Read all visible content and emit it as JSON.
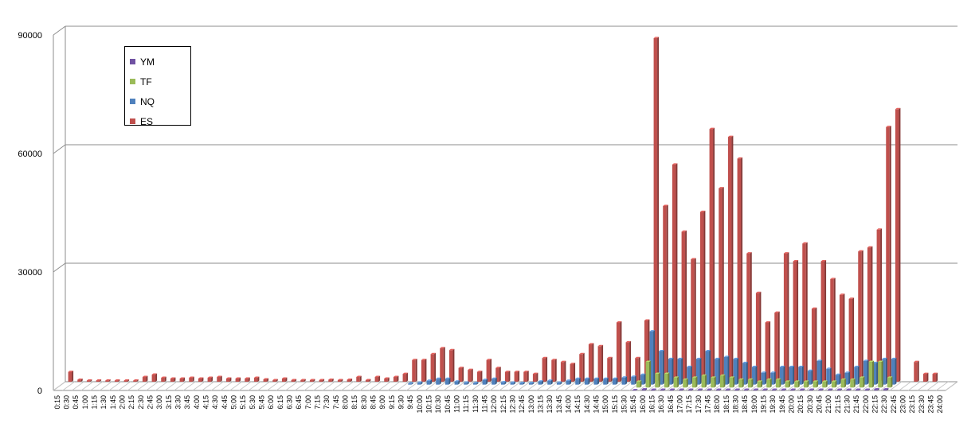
{
  "chart_data": {
    "type": "bar",
    "y_ticks": [
      "0",
      "30000",
      "60000",
      "90000"
    ],
    "ylim": [
      0,
      90000
    ],
    "grid": true,
    "legend_position": "top-left",
    "categories": [
      "0:15",
      "0:30",
      "0:45",
      "1:00",
      "1:15",
      "1:30",
      "1:45",
      "2:00",
      "2:15",
      "2:30",
      "2:45",
      "3:00",
      "3:15",
      "3:30",
      "3:45",
      "4:00",
      "4:15",
      "4:30",
      "4:45",
      "5:00",
      "5:15",
      "5:30",
      "5:45",
      "6:00",
      "6:15",
      "6:30",
      "6:45",
      "7:00",
      "7:15",
      "7:30",
      "7:45",
      "8:00",
      "8:15",
      "8:30",
      "8:45",
      "9:00",
      "9:15",
      "9:30",
      "9:45",
      "10:00",
      "10:15",
      "10:30",
      "10:45",
      "11:00",
      "11:15",
      "11:30",
      "11:45",
      "12:00",
      "12:15",
      "12:30",
      "12:45",
      "13:00",
      "13:15",
      "13:30",
      "13:45",
      "14:00",
      "14:15",
      "14:30",
      "14:45",
      "15:00",
      "15:15",
      "15:30",
      "15:45",
      "16:00",
      "16:15",
      "16:30",
      "16:45",
      "17:00",
      "17:15",
      "17:30",
      "17:45",
      "18:00",
      "18:15",
      "18:30",
      "18:45",
      "19:00",
      "19:15",
      "19:30",
      "19:45",
      "20:00",
      "20:15",
      "20:30",
      "20:45",
      "21:00",
      "21:15",
      "21:30",
      "21:45",
      "22:00",
      "22:15",
      "22:30",
      "22:45",
      "23:00",
      "23:15",
      "23:30",
      "23:45",
      "24:00"
    ],
    "series": [
      {
        "name": "YM",
        "color": "#7052a2",
        "values": [
          0,
          0,
          0,
          0,
          0,
          0,
          0,
          0,
          0,
          0,
          0,
          0,
          0,
          0,
          0,
          0,
          0,
          0,
          0,
          0,
          0,
          0,
          0,
          0,
          0,
          0,
          0,
          0,
          0,
          0,
          0,
          0,
          0,
          0,
          0,
          0,
          0,
          0,
          0,
          0,
          0,
          0,
          0,
          0,
          0,
          0,
          0,
          0,
          0,
          0,
          0,
          0,
          0,
          0,
          0,
          0,
          0,
          0,
          0,
          0,
          0,
          0,
          100,
          300,
          200,
          200,
          200,
          200,
          200,
          200,
          200,
          200,
          200,
          200,
          200,
          200,
          200,
          200,
          200,
          200,
          200,
          200,
          200,
          200,
          200,
          200,
          200,
          200,
          300,
          300,
          0,
          0,
          0,
          0,
          0,
          0
        ]
      },
      {
        "name": "TF",
        "color": "#9bbb59",
        "values": [
          0,
          0,
          0,
          0,
          0,
          0,
          0,
          0,
          0,
          0,
          0,
          0,
          0,
          0,
          0,
          0,
          0,
          0,
          0,
          0,
          0,
          0,
          0,
          0,
          0,
          0,
          0,
          0,
          0,
          0,
          0,
          0,
          0,
          0,
          0,
          0,
          0,
          0,
          0,
          0,
          0,
          0,
          0,
          0,
          0,
          0,
          0,
          0,
          0,
          0,
          0,
          0,
          0,
          0,
          0,
          0,
          0,
          0,
          0,
          0,
          0,
          0,
          1500,
          6500,
          3500,
          3500,
          2500,
          2000,
          2500,
          3000,
          2500,
          3000,
          2500,
          2000,
          2000,
          1500,
          2000,
          2000,
          1500,
          1500,
          1500,
          1500,
          1500,
          1500,
          2000,
          2000,
          2500,
          6500,
          6500,
          2500,
          0,
          0,
          0,
          0,
          0,
          0
        ]
      },
      {
        "name": "NQ",
        "color": "#4f81bd",
        "values": [
          0,
          0,
          0,
          0,
          0,
          0,
          0,
          0,
          0,
          0,
          0,
          0,
          0,
          0,
          0,
          0,
          0,
          0,
          0,
          0,
          0,
          0,
          0,
          0,
          0,
          0,
          0,
          0,
          0,
          0,
          0,
          0,
          0,
          0,
          0,
          0,
          0,
          300,
          500,
          1000,
          1500,
          1500,
          800,
          500,
          400,
          1200,
          1500,
          600,
          500,
          400,
          400,
          800,
          1000,
          500,
          1000,
          1500,
          1500,
          1500,
          1500,
          1500,
          1800,
          2000,
          2500,
          13500,
          8500,
          6500,
          6500,
          4500,
          6500,
          8500,
          6500,
          7000,
          6500,
          5500,
          4500,
          3000,
          3000,
          4500,
          4500,
          4500,
          3500,
          6000,
          4000,
          2500,
          3000,
          4500,
          6000,
          5500,
          6500,
          6500,
          0,
          0,
          0,
          0,
          0,
          0
        ]
      },
      {
        "name": "ES",
        "color": "#c0504d",
        "values": [
          2500,
          500,
          300,
          300,
          300,
          300,
          300,
          300,
          1200,
          1800,
          1000,
          800,
          800,
          1000,
          800,
          1000,
          1200,
          800,
          800,
          800,
          1000,
          600,
          400,
          800,
          400,
          400,
          400,
          400,
          500,
          400,
          500,
          1200,
          400,
          1200,
          800,
          1200,
          2000,
          5500,
          5500,
          7000,
          8500,
          8000,
          3500,
          3000,
          2500,
          5500,
          3500,
          2500,
          2500,
          2500,
          2000,
          6000,
          5500,
          5000,
          4500,
          7000,
          9500,
          9000,
          6000,
          15000,
          10000,
          6000,
          15500,
          87000,
          44500,
          55000,
          38000,
          31000,
          43000,
          64000,
          49000,
          62000,
          56500,
          32500,
          22500,
          15000,
          17500,
          32500,
          30500,
          35000,
          18500,
          30500,
          26000,
          22000,
          21000,
          33000,
          34000,
          38500,
          64500,
          69000,
          0,
          5000,
          2000,
          2000,
          0,
          0
        ]
      }
    ]
  }
}
